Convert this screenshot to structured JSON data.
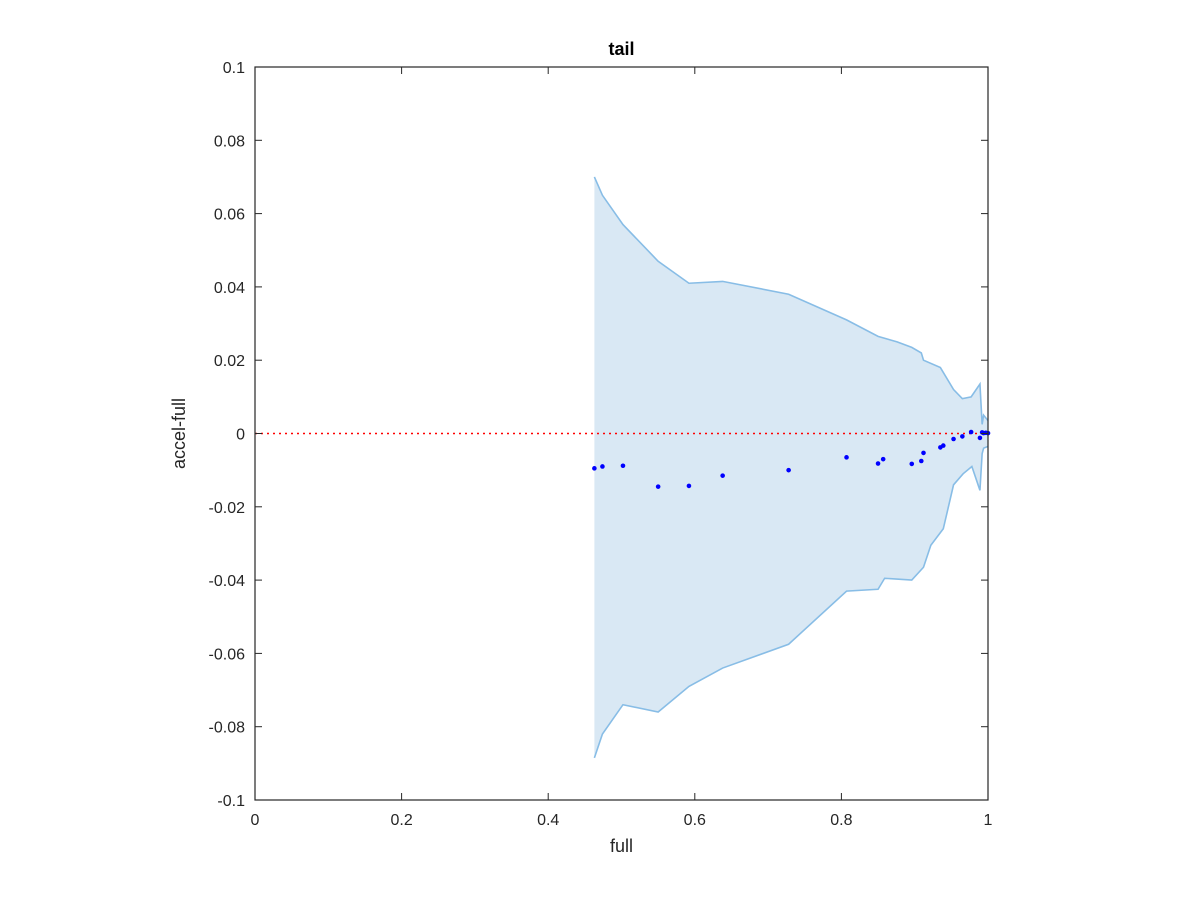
{
  "chart_data": {
    "type": "scatter",
    "title": "tail",
    "xlabel": "full",
    "ylabel": "accel-full",
    "xlim": [
      0,
      1
    ],
    "ylim": [
      -0.1,
      0.1
    ],
    "x_ticks": [
      "0",
      "0.2",
      "0.4",
      "0.6",
      "0.8",
      "1"
    ],
    "y_ticks": [
      "-0.1",
      "-0.08",
      "-0.06",
      "-0.04",
      "-0.02",
      "0",
      "0.02",
      "0.04",
      "0.06",
      "0.08",
      "0.1"
    ],
    "grid": false,
    "legend": "none",
    "reference_line": {
      "y": 0,
      "style": "dotted",
      "color": "#ff0000"
    },
    "band": {
      "color": "#d9e8f4",
      "edge_color": "#88bde6",
      "upper": [
        [
          0.463,
          0.07
        ],
        [
          0.474,
          0.065
        ],
        [
          0.502,
          0.057
        ],
        [
          0.55,
          0.047
        ],
        [
          0.592,
          0.041
        ],
        [
          0.638,
          0.0415
        ],
        [
          0.728,
          0.038
        ],
        [
          0.807,
          0.031
        ],
        [
          0.85,
          0.0265
        ],
        [
          0.876,
          0.025
        ],
        [
          0.896,
          0.0235
        ],
        [
          0.909,
          0.022
        ],
        [
          0.912,
          0.02
        ],
        [
          0.935,
          0.018
        ],
        [
          0.953,
          0.012
        ],
        [
          0.965,
          0.0095
        ],
        [
          0.977,
          0.01
        ],
        [
          0.989,
          0.0135
        ],
        [
          0.992,
          0.0025
        ],
        [
          0.994,
          0.005
        ],
        [
          1.0,
          0.0035
        ]
      ],
      "lower": [
        [
          1.0,
          -0.0035
        ],
        [
          0.994,
          -0.004
        ],
        [
          0.992,
          -0.0055
        ],
        [
          0.989,
          -0.0155
        ],
        [
          0.978,
          -0.009
        ],
        [
          0.966,
          -0.011
        ],
        [
          0.953,
          -0.014
        ],
        [
          0.939,
          -0.026
        ],
        [
          0.922,
          -0.0305
        ],
        [
          0.912,
          -0.0365
        ],
        [
          0.896,
          -0.04
        ],
        [
          0.859,
          -0.0395
        ],
        [
          0.85,
          -0.0425
        ],
        [
          0.807,
          -0.043
        ],
        [
          0.728,
          -0.0575
        ],
        [
          0.638,
          -0.064
        ],
        [
          0.592,
          -0.069
        ],
        [
          0.55,
          -0.076
        ],
        [
          0.502,
          -0.074
        ],
        [
          0.474,
          -0.082
        ],
        [
          0.463,
          -0.0885
        ]
      ]
    },
    "series": [
      {
        "marker": "point",
        "color": "#0000ff",
        "points": [
          [
            0.463,
            -0.0095
          ],
          [
            0.474,
            -0.009
          ],
          [
            0.502,
            -0.0088
          ],
          [
            0.55,
            -0.0145
          ],
          [
            0.592,
            -0.0143
          ],
          [
            0.638,
            -0.0115
          ],
          [
            0.728,
            -0.01
          ],
          [
            0.807,
            -0.0065
          ],
          [
            0.85,
            -0.0082
          ],
          [
            0.857,
            -0.007
          ],
          [
            0.896,
            -0.0083
          ],
          [
            0.909,
            -0.0075
          ],
          [
            0.912,
            -0.0053
          ],
          [
            0.935,
            -0.0038
          ],
          [
            0.939,
            -0.0033
          ],
          [
            0.953,
            -0.0015
          ],
          [
            0.965,
            -0.0008
          ],
          [
            0.977,
            0.0004
          ],
          [
            0.989,
            -0.0012
          ],
          [
            0.992,
            0.0003
          ],
          [
            0.994,
            0.0001
          ],
          [
            0.997,
            0.0002
          ],
          [
            1.0,
            0.0001
          ]
        ]
      }
    ]
  }
}
